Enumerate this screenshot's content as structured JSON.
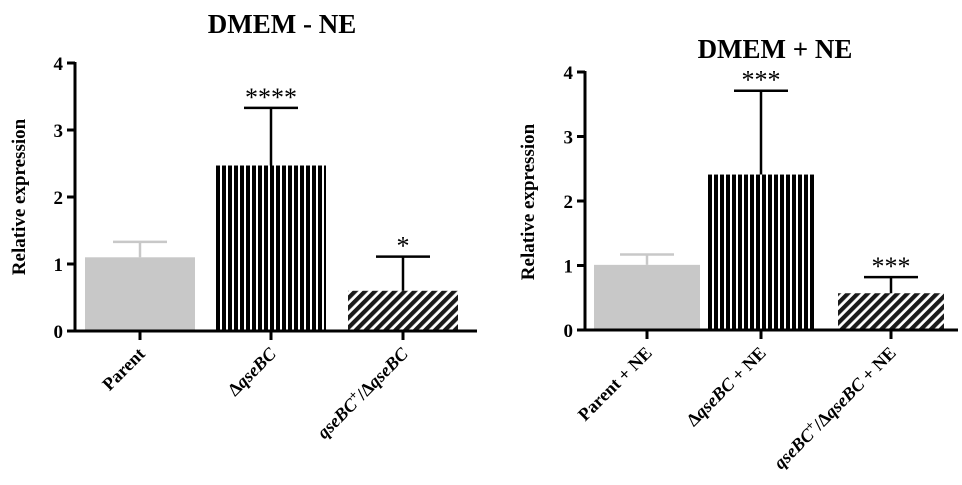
{
  "colors": {
    "parent": "#c8c8c8",
    "mutant": "#000000",
    "complement": "#1a1a1a",
    "axis": "#000000"
  },
  "chart_data": [
    {
      "type": "bar",
      "title": "DMEM - NE",
      "xlabel": "",
      "ylabel": "Relative expression",
      "ylim": [
        0,
        4
      ],
      "yticks": [
        0,
        1,
        2,
        3,
        4
      ],
      "grid": false,
      "categories": [
        {
          "parts": [
            {
              "t": "Parent",
              "i": false
            }
          ]
        },
        {
          "parts": [
            {
              "t": "Δ",
              "i": false
            },
            {
              "t": "qseBC",
              "i": true
            }
          ]
        },
        {
          "parts": [
            {
              "t": "qseBC",
              "i": true
            },
            {
              "t": "+",
              "i": false,
              "sup": true
            },
            {
              "t": "/Δ",
              "i": false
            },
            {
              "t": "qseBC",
              "i": true
            }
          ]
        }
      ],
      "values": [
        1.1,
        2.47,
        0.6
      ],
      "error": [
        0.23,
        0.86,
        0.51
      ],
      "significance": [
        "",
        "****",
        "*"
      ],
      "fills": [
        "solid-gray",
        "vertical-stripes",
        "diagonal-hatch"
      ]
    },
    {
      "type": "bar",
      "title": "DMEM + NE",
      "xlabel": "",
      "ylabel": "Relative expression",
      "ylim": [
        0,
        4
      ],
      "yticks": [
        0,
        1,
        2,
        3,
        4
      ],
      "grid": false,
      "categories": [
        {
          "parts": [
            {
              "t": "Parent + NE",
              "i": false
            }
          ]
        },
        {
          "parts": [
            {
              "t": "Δ",
              "i": false
            },
            {
              "t": "qseBC",
              "i": true
            },
            {
              "t": " + NE",
              "i": false
            }
          ]
        },
        {
          "parts": [
            {
              "t": "qseBC",
              "i": true
            },
            {
              "t": "+",
              "i": false,
              "sup": true
            },
            {
              "t": "/Δ",
              "i": false
            },
            {
              "t": "qseBC",
              "i": true
            },
            {
              "t": " + NE",
              "i": false
            }
          ]
        }
      ],
      "values": [
        1.01,
        2.41,
        0.57
      ],
      "error": [
        0.16,
        1.3,
        0.25
      ],
      "significance": [
        "",
        "***",
        "***"
      ],
      "fills": [
        "solid-gray",
        "vertical-stripes",
        "diagonal-hatch"
      ]
    }
  ]
}
